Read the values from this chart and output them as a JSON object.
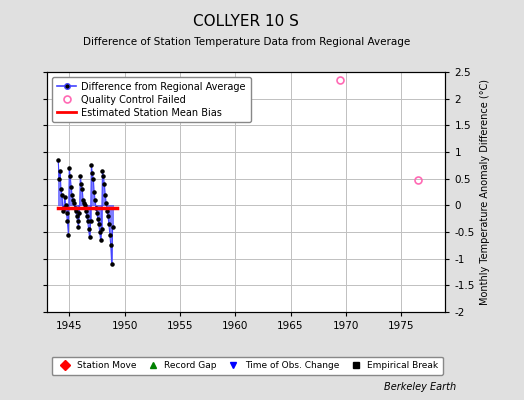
{
  "title": "COLLYER 10 S",
  "subtitle": "Difference of Station Temperature Data from Regional Average",
  "ylabel": "Monthly Temperature Anomaly Difference (°C)",
  "xlabel_bottom": "Berkeley Earth",
  "xlim": [
    1943,
    1979
  ],
  "ylim": [
    -2,
    2.5
  ],
  "yticks": [
    -2,
    -1.5,
    -1,
    -0.5,
    0,
    0.5,
    1,
    1.5,
    2,
    2.5
  ],
  "xticks": [
    1945,
    1950,
    1955,
    1960,
    1965,
    1970,
    1975
  ],
  "bg_color": "#e0e0e0",
  "plot_bg_color": "#ffffff",
  "grid_color": "#c0c0c0",
  "line_color": "#4444ff",
  "dot_color": "#000000",
  "bias_color": "#ff0000",
  "qc_color": "#ff69b4",
  "series_x": [
    1944.0,
    1944.08,
    1944.17,
    1944.25,
    1944.33,
    1944.42,
    1944.5,
    1944.58,
    1944.67,
    1944.75,
    1944.83,
    1944.92,
    1945.0,
    1945.08,
    1945.17,
    1945.25,
    1945.33,
    1945.42,
    1945.5,
    1945.58,
    1945.67,
    1945.75,
    1945.83,
    1945.92,
    1946.0,
    1946.08,
    1946.17,
    1946.25,
    1946.33,
    1946.42,
    1946.5,
    1946.58,
    1946.67,
    1946.75,
    1946.83,
    1946.92,
    1947.0,
    1947.08,
    1947.17,
    1947.25,
    1947.33,
    1947.42,
    1947.5,
    1947.58,
    1947.67,
    1947.75,
    1947.83,
    1947.92,
    1948.0,
    1948.08,
    1948.17,
    1948.25,
    1948.33,
    1948.42,
    1948.5,
    1948.58,
    1948.67,
    1948.75,
    1948.83,
    1948.92
  ],
  "series_y": [
    0.85,
    0.5,
    0.65,
    0.3,
    0.2,
    -0.1,
    -0.05,
    0.15,
    0.0,
    -0.15,
    -0.3,
    -0.55,
    0.7,
    0.55,
    0.35,
    0.2,
    0.1,
    0.05,
    -0.05,
    -0.1,
    -0.2,
    -0.3,
    -0.4,
    -0.15,
    0.55,
    0.4,
    0.3,
    0.1,
    0.05,
    0.0,
    -0.1,
    -0.2,
    -0.3,
    -0.45,
    -0.6,
    -0.3,
    0.75,
    0.6,
    0.5,
    0.25,
    0.1,
    -0.05,
    -0.15,
    -0.25,
    -0.35,
    -0.5,
    -0.65,
    -0.45,
    0.65,
    0.55,
    0.4,
    0.2,
    0.05,
    -0.1,
    -0.2,
    -0.35,
    -0.55,
    -0.75,
    -1.1,
    -0.4
  ],
  "bias_x_start": 1944.0,
  "bias_x_end": 1949.3,
  "bias_y": -0.05,
  "qc_points": [
    [
      1969.5,
      2.35
    ],
    [
      1976.5,
      0.48
    ]
  ],
  "legend_items": [
    {
      "label": "Difference from Regional Average",
      "color": "#4444ff",
      "type": "line_dot"
    },
    {
      "label": "Quality Control Failed",
      "color": "#ff69b4",
      "type": "circle"
    },
    {
      "label": "Estimated Station Mean Bias",
      "color": "#ff0000",
      "type": "line"
    }
  ],
  "bottom_legend_items": [
    {
      "label": "Station Move",
      "color": "#ff0000",
      "marker": "D"
    },
    {
      "label": "Record Gap",
      "color": "#008000",
      "marker": "^"
    },
    {
      "label": "Time of Obs. Change",
      "color": "#0000ff",
      "marker": "v"
    },
    {
      "label": "Empirical Break",
      "color": "#000000",
      "marker": "s"
    }
  ]
}
